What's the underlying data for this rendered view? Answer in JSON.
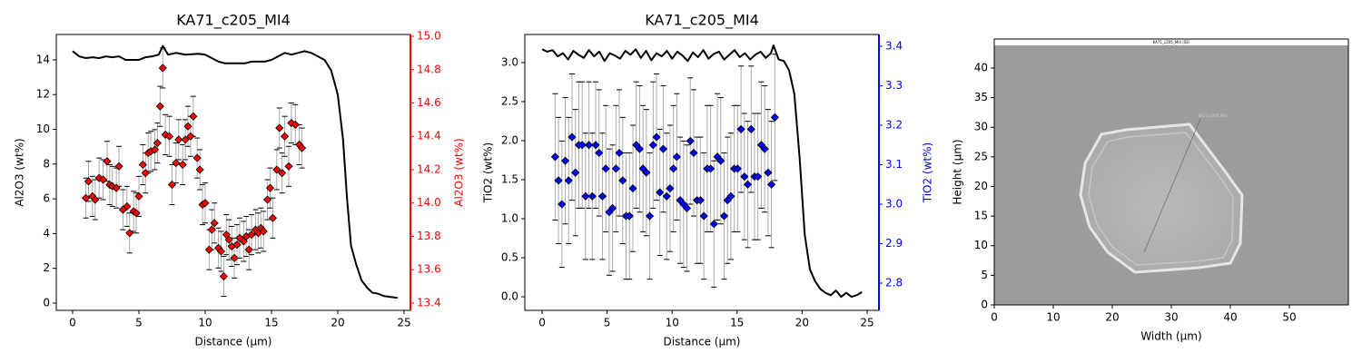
{
  "chart_data": [
    {
      "type": "line",
      "title": "KA71_c205_MI4",
      "xlabel": "Distance (µm)",
      "ylabel": "Al2O3 (wt%)",
      "y2label": "Al2O3 (wt%)",
      "y2color": "#ff0000",
      "xlim": [
        -1.23,
        25.48
      ],
      "xticks": [
        0,
        5,
        10,
        15,
        20,
        25
      ],
      "ylim": [
        -0.42,
        15.46
      ],
      "yticks": [
        0,
        2,
        4,
        6,
        8,
        10,
        12,
        14
      ],
      "y2lim": [
        13.356,
        15.011
      ],
      "y2ticks": [
        13.4,
        13.6,
        13.8,
        {
          "value": 14,
          "label": "14.0"
        },
        14.2,
        14.4,
        14.6,
        14.8,
        {
          "value": 15,
          "label": "15.0"
        }
      ],
      "series": [
        {
          "style": "line",
          "color": "#000000",
          "x": [
            0,
            0.5,
            1,
            1.5,
            2,
            2.5,
            3,
            3.5,
            4,
            4.5,
            5,
            5.5,
            6,
            6.5,
            6.8,
            7.2,
            7.8,
            8.5,
            9.5,
            10,
            10.5,
            11,
            11.5,
            12,
            12.5,
            13,
            13.5,
            14,
            14.5,
            15,
            15.5,
            16,
            16.5,
            17,
            17.5,
            18,
            18.5,
            19,
            19.5,
            20,
            20.4,
            20.7,
            21,
            21.4,
            21.8,
            22.2,
            22.6,
            23,
            23.5,
            24,
            24.5
          ],
          "values": [
            14.5,
            14.2,
            14.1,
            14.15,
            14.1,
            14.2,
            14.15,
            14.2,
            14.0,
            14.0,
            14.0,
            14.15,
            14.2,
            14.3,
            14.8,
            14.3,
            14.4,
            14.3,
            14.35,
            14.3,
            14.1,
            13.9,
            13.8,
            13.8,
            13.8,
            13.8,
            13.9,
            13.9,
            13.9,
            14.0,
            14.2,
            14.4,
            14.3,
            14.4,
            14.5,
            14.4,
            14.2,
            14.0,
            13.4,
            12.0,
            9.4,
            6.0,
            3.3,
            2.2,
            1.3,
            0.9,
            0.6,
            0.55,
            0.4,
            0.35,
            0.3
          ]
        },
        {
          "style": "errorbar",
          "axis": "y2",
          "color": "#ff0000",
          "error": 0.12,
          "x": [
            1.0,
            1.2,
            1.5,
            1.7,
            2.0,
            2.3,
            2.6,
            2.8,
            3.0,
            3.3,
            3.5,
            3.8,
            4.1,
            4.3,
            4.6,
            4.8,
            5.0,
            5.3,
            5.5,
            5.7,
            5.9,
            6.2,
            6.4,
            6.6,
            6.8,
            7.0,
            7.3,
            7.5,
            7.8,
            8.0,
            8.3,
            8.5,
            8.7,
            8.9,
            9.1,
            9.4,
            9.6,
            9.8,
            10.0,
            10.3,
            10.5,
            10.7,
            11.0,
            11.2,
            11.4,
            11.6,
            11.8,
            12.0,
            12.2,
            12.4,
            12.6,
            12.9,
            13.1,
            13.3,
            13.5,
            13.8,
            14.0,
            14.2,
            14.4,
            14.7,
            14.9,
            15.1,
            15.4,
            15.6,
            15.8,
            16.0,
            16.3,
            16.5,
            16.8,
            17.1,
            17.3
          ],
          "values": [
            14.03,
            14.13,
            14.04,
            14.02,
            14.15,
            14.14,
            14.25,
            14.11,
            14.1,
            14.09,
            14.22,
            13.96,
            13.98,
            13.82,
            13.95,
            13.94,
            14.04,
            14.23,
            14.18,
            14.3,
            14.31,
            14.32,
            14.36,
            14.58,
            14.81,
            14.41,
            14.4,
            14.11,
            14.24,
            14.38,
            14.23,
            14.38,
            14.46,
            14.4,
            14.52,
            14.27,
            14.2,
            13.99,
            14.0,
            13.72,
            13.84,
            13.88,
            13.73,
            13.71,
            13.56,
            13.81,
            13.78,
            13.74,
            13.67,
            13.75,
            13.79,
            13.77,
            13.8,
            13.72,
            13.81,
            13.84,
            13.82,
            13.85,
            13.83,
            14.02,
            14.09,
            13.91,
            14.2,
            14.45,
            14.18,
            14.4,
            14.22,
            14.48,
            14.47,
            14.35,
            14.33
          ]
        }
      ]
    },
    {
      "type": "line",
      "title": "KA71_c205_MI4",
      "xlabel": "Distance (µm)",
      "ylabel": "TiO2 (wt%)",
      "y2label": "TiO2 (wt%)",
      "y2color": "#0000ff",
      "xlim": [
        -1.33,
        25.91
      ],
      "xticks": [
        0,
        5,
        10,
        15,
        20,
        25
      ],
      "ylim": [
        -0.174,
        3.36
      ],
      "yticks": [
        {
          "value": 0,
          "label": "0.0"
        },
        0.5,
        {
          "value": 1,
          "label": "1.0"
        },
        1.5,
        {
          "value": 2,
          "label": "2.0"
        },
        2.5,
        {
          "value": 3,
          "label": "3.0"
        }
      ],
      "y2lim": [
        2.731,
        3.43
      ],
      "y2ticks": [
        2.8,
        2.9,
        {
          "value": 3,
          "label": "3.0"
        },
        3.1,
        3.2,
        3.3,
        3.4
      ],
      "series": [
        {
          "style": "line",
          "color": "#000000",
          "x": [
            0,
            0.4,
            0.8,
            1.2,
            1.6,
            2.0,
            2.4,
            2.8,
            3.2,
            3.6,
            4.0,
            4.4,
            4.8,
            5.2,
            5.6,
            6.0,
            6.4,
            6.8,
            7.2,
            7.6,
            8.0,
            8.4,
            8.8,
            9.2,
            9.6,
            10.0,
            10.4,
            10.8,
            11.2,
            11.6,
            12.0,
            12.4,
            12.8,
            13.2,
            13.6,
            14.0,
            14.4,
            14.8,
            15.2,
            15.6,
            16.0,
            16.4,
            16.8,
            17.2,
            17.6,
            17.8,
            18.2,
            18.6,
            19.0,
            19.4,
            19.8,
            20.2,
            20.6,
            21.0,
            21.4,
            21.8,
            22.2,
            22.6,
            23.0,
            23.4,
            23.8,
            24.2,
            24.6
          ],
          "values": [
            3.17,
            3.14,
            3.16,
            3.08,
            3.12,
            3.04,
            3.15,
            3.1,
            3.06,
            3.16,
            3.08,
            3.14,
            3.02,
            3.12,
            3.09,
            3.05,
            3.15,
            3.1,
            3.17,
            3.06,
            3.15,
            3.03,
            3.12,
            3.08,
            3.15,
            3.05,
            3.14,
            3.09,
            3.02,
            3.13,
            3.07,
            3.16,
            3.05,
            3.11,
            3.14,
            3.04,
            3.1,
            3.16,
            3.07,
            3.12,
            3.04,
            3.1,
            3.14,
            3.06,
            3.12,
            3.22,
            3.04,
            3.02,
            2.9,
            2.6,
            1.8,
            0.8,
            0.35,
            0.2,
            0.1,
            0.05,
            0.02,
            0.08,
            0.0,
            0.05,
            0.0,
            0.02,
            0.06
          ]
        },
        {
          "style": "errorbar",
          "axis": "y2",
          "color": "#0000ff",
          "error": 0.16,
          "x": [
            1.0,
            1.26,
            1.52,
            1.78,
            2.04,
            2.3,
            2.56,
            2.82,
            3.08,
            3.34,
            3.6,
            3.86,
            4.12,
            4.38,
            4.64,
            4.9,
            5.16,
            5.42,
            5.68,
            5.94,
            6.2,
            6.46,
            6.72,
            6.98,
            7.24,
            7.5,
            7.76,
            8.02,
            8.28,
            8.54,
            8.8,
            9.06,
            9.32,
            9.58,
            9.84,
            10.1,
            10.36,
            10.62,
            10.88,
            11.14,
            11.4,
            11.66,
            11.92,
            12.18,
            12.44,
            12.7,
            12.96,
            13.22,
            13.48,
            13.74,
            14.0,
            14.26,
            14.52,
            14.78,
            15.04,
            15.3,
            15.56,
            15.82,
            16.08,
            16.34,
            16.6,
            16.86,
            17.12,
            17.38,
            17.64,
            17.9
          ],
          "values": [
            3.12,
            3.06,
            3.0,
            3.11,
            3.06,
            3.17,
            3.08,
            3.15,
            3.15,
            3.02,
            3.15,
            3.02,
            3.15,
            3.13,
            3.02,
            3.09,
            2.98,
            2.99,
            3.09,
            3.13,
            3.06,
            2.97,
            2.97,
            3.04,
            3.15,
            3.14,
            3.09,
            3.08,
            2.97,
            3.15,
            3.17,
            3.03,
            3.14,
            3.02,
            3.04,
            3.09,
            3.12,
            3.01,
            3.0,
            2.99,
            3.16,
            3.13,
            3.01,
            3.01,
            2.97,
            3.09,
            3.09,
            2.95,
            3.12,
            3.11,
            2.97,
            3.01,
            3.02,
            3.09,
            3.09,
            3.19,
            3.07,
            3.05,
            3.19,
            3.07,
            3.07,
            3.15,
            3.14,
            3.08,
            3.05,
            3.22
          ]
        }
      ]
    },
    {
      "type": "image",
      "image_title": "KA71_c205_MI4 (SE)",
      "annotation": "KA71_c205_MI4",
      "xlabel": "Width (µm)",
      "ylabel": "Height (µm)",
      "xlim": [
        0,
        60
      ],
      "xticks": [
        0,
        10,
        20,
        30,
        40,
        50
      ],
      "ylim": [
        0,
        44.9
      ],
      "yticks": [
        0,
        5,
        10,
        15,
        20,
        25,
        30,
        35,
        40
      ]
    }
  ]
}
